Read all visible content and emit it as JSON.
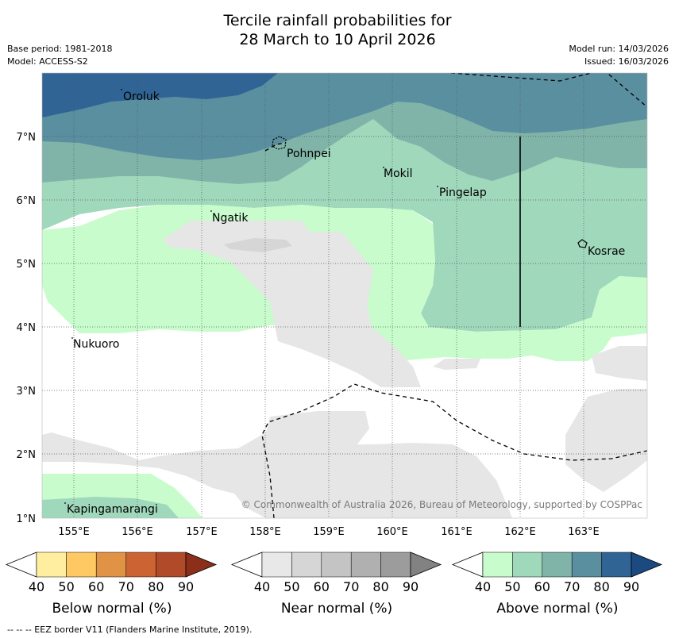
{
  "title_line1": "Tercile rainfall probabilities for",
  "title_line2": "28 March to 10 April 2026",
  "meta": {
    "base_period": "Base period: 1981-2018",
    "model": "Model: ACCESS-S2",
    "model_run": "Model run: 14/03/2026",
    "issued": "Issued: 16/03/2026"
  },
  "axes": {
    "lat_labels": [
      "7°N",
      "6°N",
      "5°N",
      "4°N",
      "3°N",
      "2°N",
      "1°N"
    ],
    "lon_labels": [
      "155°E",
      "156°E",
      "157°E",
      "158°E",
      "159°E",
      "160°E",
      "161°E",
      "162°E",
      "163°E"
    ]
  },
  "places": {
    "oroluk": "Oroluk",
    "pohnpei": "Pohnpei",
    "mokil": "Mokil",
    "pingelap": "Pingelap",
    "ngatik": "Ngatik",
    "kosrae": "Kosrae",
    "nukuoro": "Nukuoro",
    "kapingamarangi": "Kapingamarangi"
  },
  "copyright": "© Commonwealth of Australia 2026, Bureau of Meteorology, supported by COSPPac",
  "colorbars": {
    "ticks": [
      "40",
      "50",
      "60",
      "70",
      "80",
      "90"
    ],
    "below": {
      "title": "Below normal (%)",
      "colors": [
        "#ffffff",
        "#ffeda0",
        "#fec863",
        "#e09344",
        "#cc6333",
        "#b04a29",
        "#8b2e1a"
      ]
    },
    "near": {
      "title": "Near normal (%)",
      "colors": [
        "#ffffff",
        "#e8e8e8",
        "#d6d6d6",
        "#c4c4c4",
        "#b0b0b0",
        "#9c9c9c",
        "#828282"
      ]
    },
    "above": {
      "title": "Above normal (%)",
      "colors": [
        "#ffffff",
        "#c8fccc",
        "#a0d8bc",
        "#80b4a8",
        "#5a8fa0",
        "#306494",
        "#1a4a80"
      ]
    }
  },
  "footnote": "--  --  -- EEZ border V11 (Flanders Marine Institute, 2019)."
}
